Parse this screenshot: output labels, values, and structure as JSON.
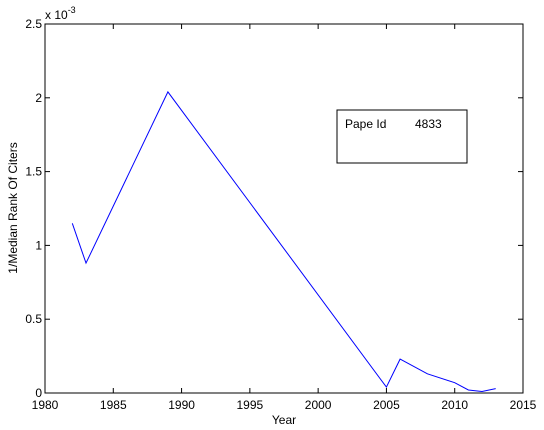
{
  "chart_data": {
    "type": "line",
    "title": "",
    "xlabel": "Year",
    "ylabel": "1/Median Rank Of Citers",
    "y_scale_multiplier": {
      "base": "x 10",
      "exponent": "-3"
    },
    "xlim": [
      1980,
      2015
    ],
    "ylim": [
      0,
      0.0025
    ],
    "xticks": [
      1980,
      1985,
      1990,
      1995,
      2000,
      2005,
      2010,
      2015
    ],
    "xtick_labels": [
      "1980",
      "1985",
      "1990",
      "1995",
      "2000",
      "2005",
      "2010",
      "2015"
    ],
    "yticks": [
      0,
      0.0005,
      0.001,
      0.0015,
      0.002,
      0.0025
    ],
    "ytick_labels": [
      "0",
      "0.5",
      "1",
      "1.5",
      "2",
      "2.5"
    ],
    "grid": false,
    "legend_placement": "upper-right",
    "line_color": "#0000ff",
    "series": [
      {
        "legend_label": "Pape Id",
        "legend_value": "4833",
        "x": [
          1982,
          1983,
          1989,
          2005,
          2006,
          2008,
          2010,
          2011,
          2012,
          2013
        ],
        "y": [
          0.00115,
          0.00088,
          0.00204,
          4e-05,
          0.00023,
          0.00013,
          7e-05,
          2e-05,
          1e-05,
          3e-05
        ]
      }
    ]
  }
}
